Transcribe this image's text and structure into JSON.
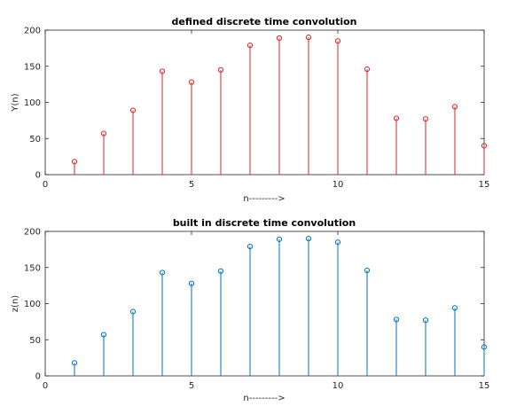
{
  "chart_data": [
    {
      "type": "stem",
      "title": "defined discrete time convolution",
      "xlabel": "n--------->",
      "ylabel": "Y(n)",
      "xlim": [
        0,
        15
      ],
      "ylim": [
        0,
        200
      ],
      "xticks": [
        0,
        5,
        10,
        15
      ],
      "yticks": [
        0,
        50,
        100,
        150,
        200
      ],
      "grid": false,
      "color": "#d62728",
      "x": [
        1,
        2,
        3,
        4,
        5,
        6,
        7,
        8,
        9,
        10,
        11,
        12,
        13,
        14,
        15
      ],
      "values": [
        18,
        57,
        89,
        143,
        128,
        145,
        179,
        189,
        190,
        185,
        146,
        78,
        77,
        94,
        40
      ]
    },
    {
      "type": "stem",
      "title": "built in discrete time convolution",
      "xlabel": "n--------->",
      "ylabel": "z(n)",
      "xlim": [
        0,
        15
      ],
      "ylim": [
        0,
        200
      ],
      "xticks": [
        0,
        5,
        10,
        15
      ],
      "yticks": [
        0,
        50,
        100,
        150,
        200
      ],
      "grid": false,
      "color": "#0072bd",
      "x": [
        1,
        2,
        3,
        4,
        5,
        6,
        7,
        8,
        9,
        10,
        11,
        12,
        13,
        14,
        15
      ],
      "values": [
        18,
        57,
        89,
        143,
        128,
        145,
        179,
        189,
        190,
        185,
        146,
        78,
        77,
        94,
        40
      ]
    }
  ]
}
